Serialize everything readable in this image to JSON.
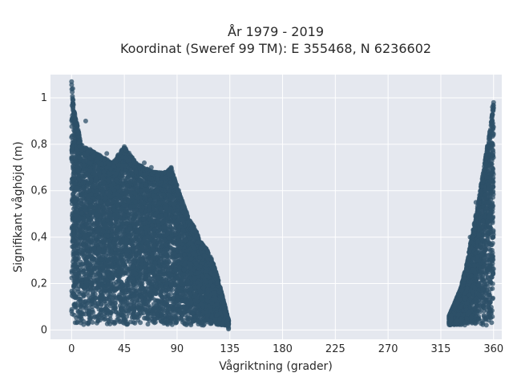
{
  "chart_data": {
    "type": "scatter",
    "title_line1": "År 1979 - 2019",
    "title_line2": "Koordinat (Sweref 99 TM): E 355468, N 6236602",
    "xlabel": "Vågriktning (grader)",
    "ylabel": "Signifikant våghöjd (m)",
    "xlim": [
      -18,
      367
    ],
    "ylim": [
      -0.04,
      1.1
    ],
    "x_ticks": [
      0,
      45,
      90,
      135,
      180,
      225,
      270,
      315,
      360
    ],
    "x_tick_labels": [
      "0",
      "45",
      "90",
      "135",
      "180",
      "225",
      "270",
      "315",
      "360"
    ],
    "y_ticks": [
      0,
      0.2,
      0.4,
      0.6,
      0.8,
      1.0
    ],
    "y_tick_labels": [
      "0",
      "0,2",
      "0,4",
      "0,6",
      "0,8",
      "1"
    ],
    "grid": true,
    "colors": {
      "plot_bg": "#e5e8ef",
      "marker": "#2e5068"
    },
    "series": [
      {
        "region": "0-135",
        "upper_envelope": [
          [
            0,
            1.07
          ],
          [
            2,
            0.95
          ],
          [
            5,
            0.88
          ],
          [
            8,
            0.8
          ],
          [
            15,
            0.78
          ],
          [
            25,
            0.75
          ],
          [
            35,
            0.72
          ],
          [
            45,
            0.79
          ],
          [
            55,
            0.72
          ],
          [
            62,
            0.7
          ],
          [
            70,
            0.68
          ],
          [
            80,
            0.68
          ],
          [
            85,
            0.7
          ],
          [
            90,
            0.62
          ],
          [
            95,
            0.55
          ],
          [
            100,
            0.48
          ],
          [
            105,
            0.44
          ],
          [
            110,
            0.38
          ],
          [
            115,
            0.35
          ],
          [
            120,
            0.3
          ],
          [
            125,
            0.22
          ],
          [
            130,
            0.12
          ],
          [
            134,
            0.04
          ]
        ],
        "lower_bound": 0.02,
        "outliers": [
          [
            45,
            0.79
          ],
          [
            48,
            0.73
          ],
          [
            30,
            0.76
          ],
          [
            62,
            0.72
          ],
          [
            68,
            0.7
          ],
          [
            85,
            0.7
          ],
          [
            40,
            0.71
          ],
          [
            55,
            0.68
          ],
          [
            12,
            0.9
          ],
          [
            0,
            1.07
          ],
          [
            1,
            1.04
          ]
        ]
      },
      {
        "region": "320-360",
        "upper_envelope": [
          [
            322,
            0.06
          ],
          [
            327,
            0.12
          ],
          [
            332,
            0.18
          ],
          [
            337,
            0.28
          ],
          [
            342,
            0.42
          ],
          [
            347,
            0.55
          ],
          [
            351,
            0.68
          ],
          [
            355,
            0.8
          ],
          [
            358,
            0.9
          ],
          [
            360,
            0.98
          ]
        ],
        "lower_bound": 0.02,
        "outliers": [
          [
            360,
            0.98
          ],
          [
            359,
            0.96
          ],
          [
            345,
            0.55
          ],
          [
            340,
            0.4
          ]
        ]
      }
    ]
  }
}
